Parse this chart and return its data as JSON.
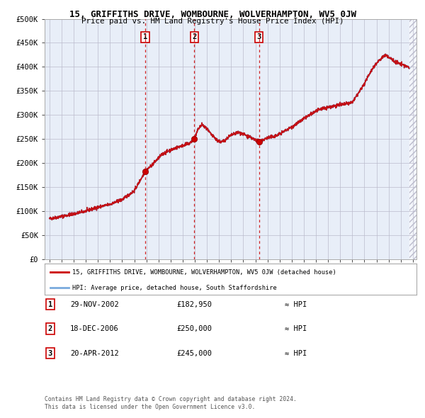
{
  "title": "15, GRIFFITHS DRIVE, WOMBOURNE, WOLVERHAMPTON, WV5 0JW",
  "subtitle": "Price paid vs. HM Land Registry's House Price Index (HPI)",
  "legend_line1": "15, GRIFFITHS DRIVE, WOMBOURNE, WOLVERHAMPTON, WV5 0JW (detached house)",
  "legend_line2": "HPI: Average price, detached house, South Staffordshire",
  "footer1": "Contains HM Land Registry data © Crown copyright and database right 2024.",
  "footer2": "This data is licensed under the Open Government Licence v3.0.",
  "purchases": [
    {
      "num": 1,
      "date": "29-NOV-2002",
      "date_float": 2002.91,
      "price": 182950,
      "label": "£182,950"
    },
    {
      "num": 2,
      "date": "18-DEC-2006",
      "date_float": 2006.96,
      "price": 250000,
      "label": "£250,000"
    },
    {
      "num": 3,
      "date": "20-APR-2012",
      "date_float": 2012.3,
      "price": 245000,
      "label": "£245,000"
    }
  ],
  "hpi_color": "#7aaadd",
  "price_color": "#cc0000",
  "dashed_color": "#cc0000",
  "plot_bg": "#e8eef8",
  "grid_color": "#bbbbcc",
  "ylim": [
    0,
    500000
  ],
  "yticks": [
    0,
    50000,
    100000,
    150000,
    200000,
    250000,
    300000,
    350000,
    400000,
    450000,
    500000
  ],
  "xlim_start": 1994.6,
  "xlim_end": 2025.3,
  "xticks": [
    1995,
    1996,
    1997,
    1998,
    1999,
    2000,
    2001,
    2002,
    2003,
    2004,
    2005,
    2006,
    2007,
    2008,
    2009,
    2010,
    2011,
    2012,
    2013,
    2014,
    2015,
    2016,
    2017,
    2018,
    2019,
    2020,
    2021,
    2022,
    2023,
    2024,
    2025
  ],
  "anchors": [
    [
      1995.0,
      84000
    ],
    [
      1996.0,
      89000
    ],
    [
      1997.0,
      94000
    ],
    [
      1998.0,
      100000
    ],
    [
      1999.0,
      108000
    ],
    [
      2000.0,
      114000
    ],
    [
      2001.0,
      124000
    ],
    [
      2002.0,
      142000
    ],
    [
      2002.91,
      182950
    ],
    [
      2003.3,
      192000
    ],
    [
      2003.8,
      205000
    ],
    [
      2004.3,
      218000
    ],
    [
      2004.8,
      225000
    ],
    [
      2005.3,
      230000
    ],
    [
      2005.8,
      235000
    ],
    [
      2006.5,
      240000
    ],
    [
      2006.96,
      250000
    ],
    [
      2007.3,
      272000
    ],
    [
      2007.6,
      280000
    ],
    [
      2008.0,
      270000
    ],
    [
      2008.4,
      258000
    ],
    [
      2008.8,
      248000
    ],
    [
      2009.2,
      243000
    ],
    [
      2009.5,
      248000
    ],
    [
      2009.8,
      255000
    ],
    [
      2010.2,
      260000
    ],
    [
      2010.6,
      264000
    ],
    [
      2011.0,
      260000
    ],
    [
      2011.4,
      255000
    ],
    [
      2011.8,
      250000
    ],
    [
      2012.3,
      245000
    ],
    [
      2012.6,
      248000
    ],
    [
      2013.0,
      252000
    ],
    [
      2013.5,
      255000
    ],
    [
      2014.0,
      260000
    ],
    [
      2014.5,
      268000
    ],
    [
      2015.0,
      275000
    ],
    [
      2015.5,
      283000
    ],
    [
      2016.0,
      292000
    ],
    [
      2016.5,
      300000
    ],
    [
      2017.0,
      308000
    ],
    [
      2017.5,
      313000
    ],
    [
      2018.0,
      316000
    ],
    [
      2018.5,
      319000
    ],
    [
      2019.0,
      321000
    ],
    [
      2019.5,
      323000
    ],
    [
      2020.0,
      326000
    ],
    [
      2020.5,
      345000
    ],
    [
      2021.0,
      365000
    ],
    [
      2021.5,
      390000
    ],
    [
      2022.0,
      408000
    ],
    [
      2022.4,
      418000
    ],
    [
      2022.75,
      425000
    ],
    [
      2023.0,
      420000
    ],
    [
      2023.3,
      415000
    ],
    [
      2023.6,
      410000
    ],
    [
      2024.0,
      406000
    ],
    [
      2024.4,
      402000
    ],
    [
      2024.7,
      398000
    ]
  ]
}
